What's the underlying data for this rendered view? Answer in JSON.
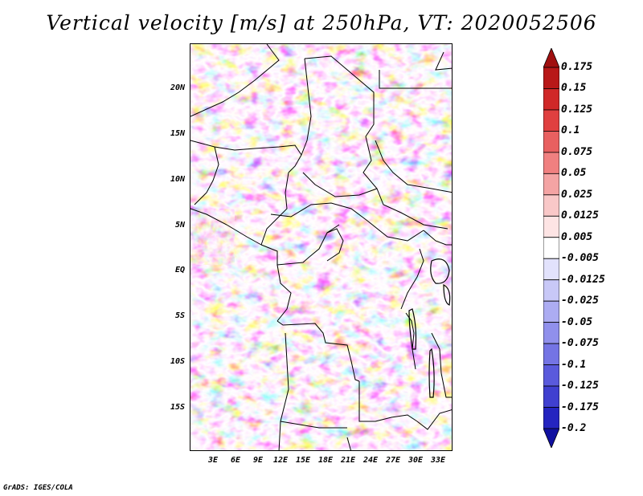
{
  "title": "Vertical velocity [m/s] at 250hPa, VT: 2020052506",
  "footer": "GrADS: IGES/COLA",
  "map": {
    "lat_labels": [
      "20N",
      "15N",
      "10N",
      "5N",
      "EQ",
      "5S",
      "10S",
      "15S"
    ],
    "lon_labels": [
      "3E",
      "6E",
      "9E",
      "12E",
      "15E",
      "18E",
      "21E",
      "24E",
      "27E",
      "30E",
      "33E"
    ]
  },
  "colorbar": {
    "labels": [
      "0.175",
      "0.15",
      "0.125",
      "0.1",
      "0.075",
      "0.05",
      "0.025",
      "0.0125",
      "0.005",
      "-0.005",
      "-0.0125",
      "-0.025",
      "-0.05",
      "-0.075",
      "-0.1",
      "-0.125",
      "-0.175",
      "-0.2"
    ],
    "colors": [
      "#a01010",
      "#b81818",
      "#d02828",
      "#e04040",
      "#e86060",
      "#f08080",
      "#f4a4a4",
      "#f9c8c8",
      "#fde4e4",
      "#ffffff",
      "#e2e2fc",
      "#c8c8f7",
      "#acacf2",
      "#9090ec",
      "#7474e4",
      "#5a5adc",
      "#4040d0",
      "#2424c0",
      "#1010a0"
    ]
  }
}
